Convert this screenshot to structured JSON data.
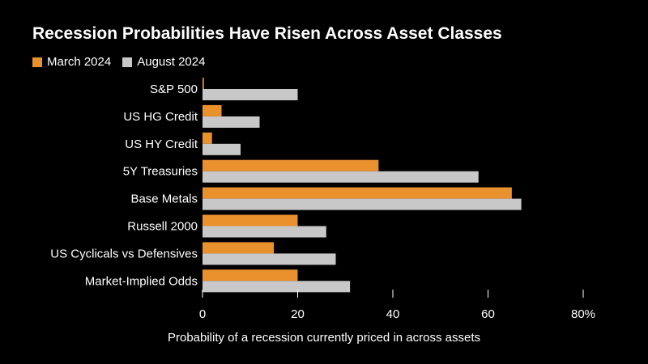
{
  "chart_data": {
    "type": "bar",
    "orientation": "horizontal",
    "title": "Recession Probabilities Have Risen Across Asset Classes",
    "xlabel": "Probability of a recession currently priced in across assets",
    "ylabel": "",
    "xlim": [
      0,
      80
    ],
    "xticks": [
      0,
      20,
      40,
      60,
      80
    ],
    "xtick_labels": [
      "0",
      "20",
      "40",
      "60",
      "80%"
    ],
    "categories": [
      "S&P 500",
      "US HG Credit",
      "US HY Credit",
      "5Y Treasuries",
      "Base Metals",
      "Russell 2000",
      "US Cyclicals vs Defensives",
      "Market-Implied Odds"
    ],
    "series": [
      {
        "name": "March 2024",
        "color": "#e8912d",
        "values": [
          0.3,
          4,
          2,
          37,
          65,
          20,
          15,
          20
        ]
      },
      {
        "name": "August 2024",
        "color": "#c8c8c8",
        "values": [
          20,
          12,
          8,
          58,
          67,
          26,
          28,
          31
        ]
      }
    ],
    "legend_position": "top-left",
    "grid": false
  }
}
